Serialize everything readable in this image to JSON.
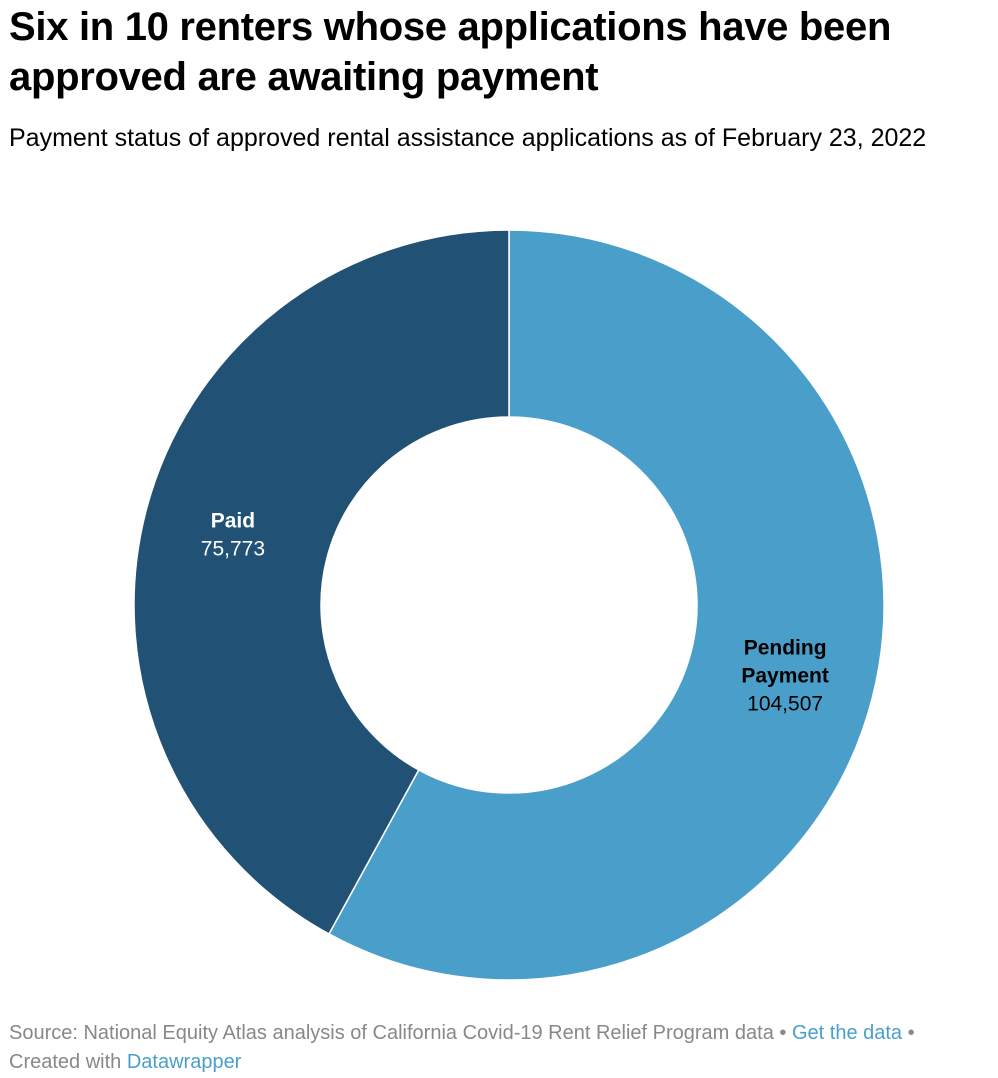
{
  "header": {
    "title": "Six in 10 renters whose applications have been approved are awaiting payment",
    "subtitle": "Payment status of approved rental assistance applications as of February 23, 2022"
  },
  "chart_data": {
    "type": "pie",
    "donut": true,
    "title": "Six in 10 renters whose applications have been approved are awaiting payment",
    "subtitle": "Payment status of approved rental assistance applications as of February 23, 2022",
    "slices": [
      {
        "label_lines": [
          "Pending",
          "Payment"
        ],
        "value": 104507,
        "value_label": "104,507",
        "color": "#4a9fca",
        "text_color": "#000000"
      },
      {
        "label_lines": [
          "Paid"
        ],
        "value": 75773,
        "value_label": "75,773",
        "color": "#215175",
        "text_color": "#ffffff"
      }
    ],
    "start": "12 o'clock",
    "direction": "clockwise",
    "legend": "none"
  },
  "footer": {
    "source_text": "Source: National Equity Atlas analysis of California Covid-19 Rent Relief Program data",
    "separator": "•",
    "get_data_label": "Get the data",
    "created_with": "Created with",
    "tool_name": "Datawrapper"
  },
  "colors": {
    "pending": "#4a9fca",
    "paid": "#215175",
    "footer_text": "#888888",
    "link": "#4a9fca"
  }
}
